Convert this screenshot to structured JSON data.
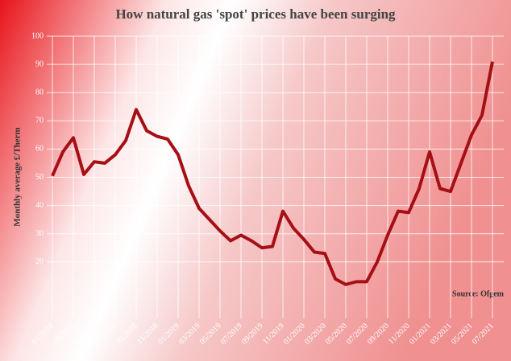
{
  "chart_data": {
    "type": "line",
    "title": "How natural gas 'spot' prices have been surging",
    "y_label": "Monthly average £/Therm",
    "source": "Source: Ofgem",
    "categories": [
      "01/2018",
      null,
      "03/2018",
      null,
      "05/2018",
      null,
      "07/2018",
      null,
      "09/2018",
      null,
      "11/2018",
      null,
      "01/2019",
      null,
      "03/2019",
      null,
      "05/2019",
      null,
      "07/2019",
      null,
      "09/2019",
      null,
      "11/2019",
      null,
      "01/2020",
      null,
      "03/2020",
      null,
      "05/2020",
      null,
      "07/2020",
      null,
      "09/2020",
      null,
      "11/2020",
      null,
      "01/2021",
      null,
      "03/2021",
      null,
      "05/2021",
      null,
      "07/2021"
    ],
    "series": [
      {
        "name": "Monthly average",
        "color": "#a50f15",
        "values": [
          50.5,
          59,
          64,
          51,
          55.5,
          55,
          58,
          63,
          74,
          66.5,
          64.5,
          63.5,
          58,
          47,
          39,
          35,
          31,
          27.5,
          29.5,
          27.5,
          25,
          25.5,
          38,
          32,
          28,
          23.5,
          23,
          14,
          12,
          13,
          13,
          20,
          29.5,
          38,
          37.5,
          46,
          59,
          46,
          45,
          55,
          65,
          72,
          91
        ]
      }
    ],
    "ylim": [
      0,
      100
    ],
    "yticks": [
      20,
      30,
      40,
      50,
      60,
      70,
      80,
      90,
      100
    ],
    "grid": true
  }
}
